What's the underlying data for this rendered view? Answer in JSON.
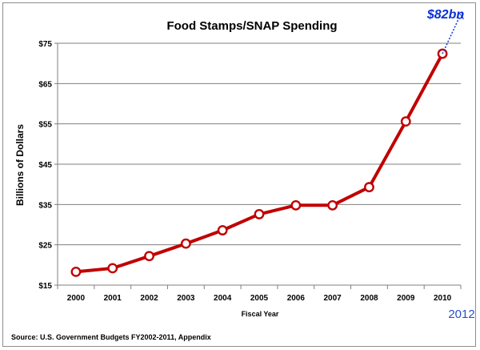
{
  "chart_data": {
    "type": "line",
    "title": "Food Stamps/SNAP Spending",
    "xlabel": "Fiscal Year",
    "ylabel": "Billions of Dollars",
    "ylim": [
      15,
      75
    ],
    "y_ticks": [
      "$15",
      "$25",
      "$35",
      "$45",
      "$55",
      "$65",
      "$75"
    ],
    "y_tick_values": [
      15,
      25,
      35,
      45,
      55,
      65,
      75
    ],
    "grid": true,
    "categories": [
      "2000",
      "2001",
      "2002",
      "2003",
      "2004",
      "2005",
      "2006",
      "2007",
      "2008",
      "2009",
      "2010"
    ],
    "series": [
      {
        "values": [
          18.3,
          19.2,
          22.2,
          25.3,
          28.6,
          32.6,
          34.8,
          34.8,
          39.3,
          55.6,
          72.4
        ],
        "color": "#c00000"
      }
    ],
    "projection": {
      "label": "$82bn",
      "year": "2012",
      "value": 82,
      "marker": "x",
      "color": "#1f3fd0"
    },
    "source": "Source: U.S. Government Budgets FY2002-2011,  Appendix"
  }
}
